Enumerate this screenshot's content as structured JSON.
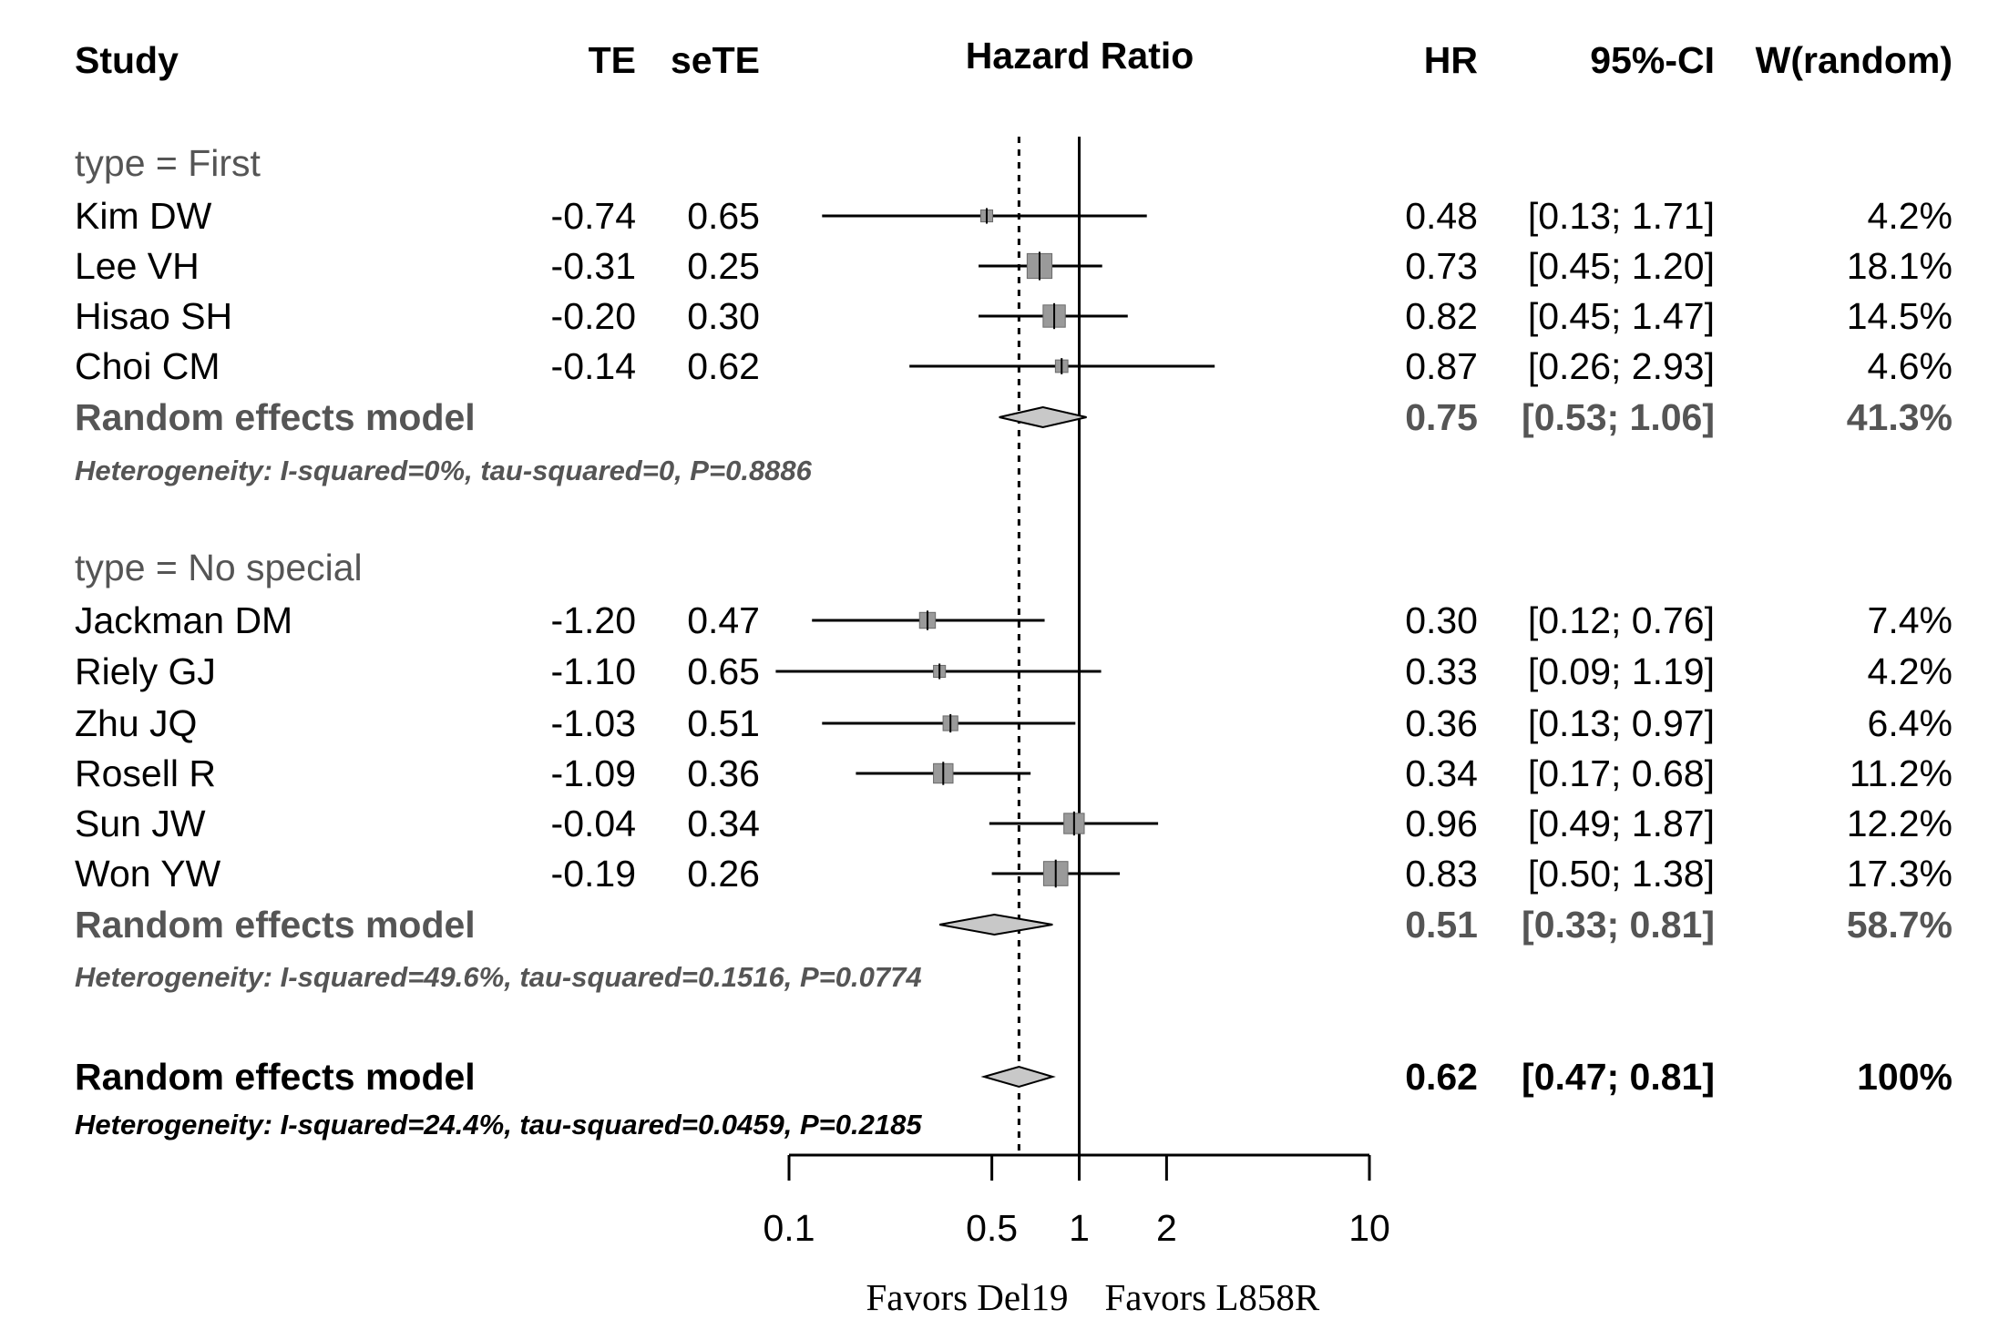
{
  "chart_data": {
    "type": "forest",
    "title": "Hazard Ratio",
    "columns": {
      "study": "Study",
      "te": "TE",
      "sete": "seTE",
      "hr": "HR",
      "ci": "95%-CI",
      "weight": "W(random)"
    },
    "x_scale": "log",
    "xlim": [
      0.1,
      10
    ],
    "x_ticks": [
      0.1,
      0.5,
      1,
      2,
      10
    ],
    "x_tick_labels": [
      "0.1",
      "0.5",
      "1",
      "2",
      "10"
    ],
    "reference_line": 1,
    "overall_line": 0.62,
    "favors_left": "Favors Del19",
    "favors_right": "Favors L858R",
    "subgroups": [
      {
        "label": "type = First",
        "studies": [
          {
            "study": "Kim DW",
            "te": "-0.74",
            "sete": "0.65",
            "hr": 0.48,
            "lower": 0.13,
            "upper": 1.71,
            "hr_text": "0.48",
            "ci_text": "[0.13; 1.71]",
            "weight": 4.2,
            "weight_text": "4.2%"
          },
          {
            "study": "Lee VH",
            "te": "-0.31",
            "sete": "0.25",
            "hr": 0.73,
            "lower": 0.45,
            "upper": 1.2,
            "hr_text": "0.73",
            "ci_text": "[0.45; 1.20]",
            "weight": 18.1,
            "weight_text": "18.1%"
          },
          {
            "study": "Hisao SH",
            "te": "-0.20",
            "sete": "0.30",
            "hr": 0.82,
            "lower": 0.45,
            "upper": 1.47,
            "hr_text": "0.82",
            "ci_text": "[0.45; 1.47]",
            "weight": 14.5,
            "weight_text": "14.5%"
          },
          {
            "study": "Choi CM",
            "te": "-0.14",
            "sete": "0.62",
            "hr": 0.87,
            "lower": 0.26,
            "upper": 2.93,
            "hr_text": "0.87",
            "ci_text": "[0.26; 2.93]",
            "weight": 4.6,
            "weight_text": "4.6%"
          }
        ],
        "pooled": {
          "label": "Random effects model",
          "hr": 0.75,
          "lower": 0.53,
          "upper": 1.06,
          "hr_text": "0.75",
          "ci_text": "[0.53; 1.06]",
          "weight_text": "41.3%"
        },
        "heterogeneity": "Heterogeneity: I-squared=0%, tau-squared=0, P=0.8886"
      },
      {
        "label": "type = No special",
        "studies": [
          {
            "study": "Jackman DM",
            "te": "-1.20",
            "sete": "0.47",
            "hr": 0.3,
            "lower": 0.12,
            "upper": 0.76,
            "hr_text": "0.30",
            "ci_text": "[0.12; 0.76]",
            "weight": 7.4,
            "weight_text": "7.4%"
          },
          {
            "study": "Riely GJ",
            "te": "-1.10",
            "sete": "0.65",
            "hr": 0.33,
            "lower": 0.09,
            "upper": 1.19,
            "hr_text": "0.33",
            "ci_text": "[0.09; 1.19]",
            "weight": 4.2,
            "weight_text": "4.2%"
          },
          {
            "study": "Zhu JQ",
            "te": "-1.03",
            "sete": "0.51",
            "hr": 0.36,
            "lower": 0.13,
            "upper": 0.97,
            "hr_text": "0.36",
            "ci_text": "[0.13; 0.97]",
            "weight": 6.4,
            "weight_text": "6.4%"
          },
          {
            "study": "Rosell R",
            "te": "-1.09",
            "sete": "0.36",
            "hr": 0.34,
            "lower": 0.17,
            "upper": 0.68,
            "hr_text": "0.34",
            "ci_text": "[0.17; 0.68]",
            "weight": 11.2,
            "weight_text": "11.2%"
          },
          {
            "study": "Sun JW",
            "te": "-0.04",
            "sete": "0.34",
            "hr": 0.96,
            "lower": 0.49,
            "upper": 1.87,
            "hr_text": "0.96",
            "ci_text": "[0.49; 1.87]",
            "weight": 12.2,
            "weight_text": "12.2%"
          },
          {
            "study": "Won YW",
            "te": "-0.19",
            "sete": "0.26",
            "hr": 0.83,
            "lower": 0.5,
            "upper": 1.38,
            "hr_text": "0.83",
            "ci_text": "[0.50; 1.38]",
            "weight": 17.3,
            "weight_text": "17.3%"
          }
        ],
        "pooled": {
          "label": "Random effects model",
          "hr": 0.51,
          "lower": 0.33,
          "upper": 0.81,
          "hr_text": "0.51",
          "ci_text": "[0.33; 0.81]",
          "weight_text": "58.7%"
        },
        "heterogeneity": "Heterogeneity: I-squared=49.6%, tau-squared=0.1516, P=0.0774"
      }
    ],
    "overall": {
      "label": "Random effects model",
      "hr": 0.62,
      "lower": 0.47,
      "upper": 0.81,
      "hr_text": "0.62",
      "ci_text": "[0.47; 0.81]",
      "weight_text": "100%"
    },
    "overall_heterogeneity": "Heterogeneity: I-squared=24.4%, tau-squared=0.0459, P=0.2185"
  }
}
